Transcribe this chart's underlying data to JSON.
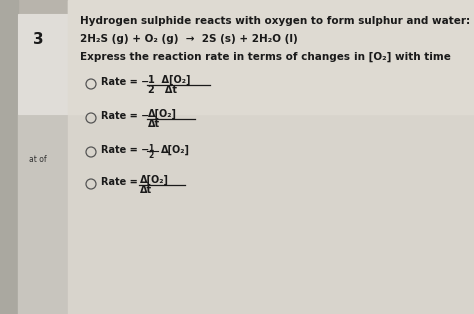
{
  "outer_bg": "#b8b4ac",
  "left_strip_color": "#c0bdb5",
  "white_box_color": "#e8e6e2",
  "main_bg": "#d4d0c8",
  "title_text": "Hydrogen sulphide reacts with oxygen to form sulphur and water:",
  "equation": "2H₂S (g) + O₂ (g)  →  2S (s) + 2H₂O (l)",
  "question": "Express the reaction rate in terms of changes’in [O₂] with time",
  "text_color": "#1a1a1a",
  "circle_color": "#555555",
  "num3": "3",
  "at_of": "at of",
  "fs_title": 7.5,
  "fs_eq": 7.5,
  "fs_opt": 7.0
}
